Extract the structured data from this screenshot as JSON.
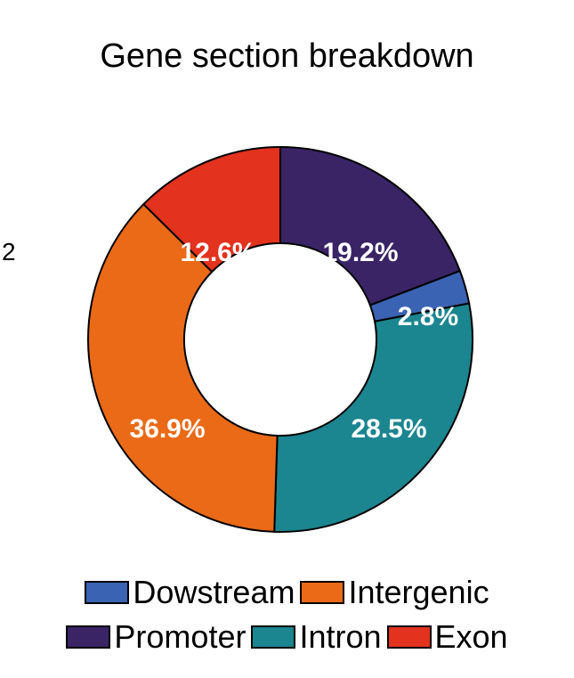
{
  "side_label": "2",
  "chart_data": {
    "type": "pie",
    "subtype": "donut",
    "title": "Gene section breakdown",
    "series": [
      {
        "name": "Exon",
        "value": 12.6,
        "label": "12.6%",
        "color": "#E3321E"
      },
      {
        "name": "Promoter",
        "value": 19.2,
        "label": "19.2%",
        "color": "#3A2466"
      },
      {
        "name": "Dowstream",
        "value": 2.8,
        "label": "2.8%",
        "color": "#3A63B3"
      },
      {
        "name": "Intron",
        "value": 28.5,
        "label": "28.5%",
        "color": "#1B8590"
      },
      {
        "name": "Intergenic",
        "value": 36.9,
        "label": "36.9%",
        "color": "#EA6A17"
      }
    ],
    "legend": {
      "placement": "bottom",
      "rows": [
        [
          "Dowstream",
          "Intergenic"
        ],
        [
          "Promoter",
          "Intron",
          "Exon"
        ]
      ]
    }
  }
}
